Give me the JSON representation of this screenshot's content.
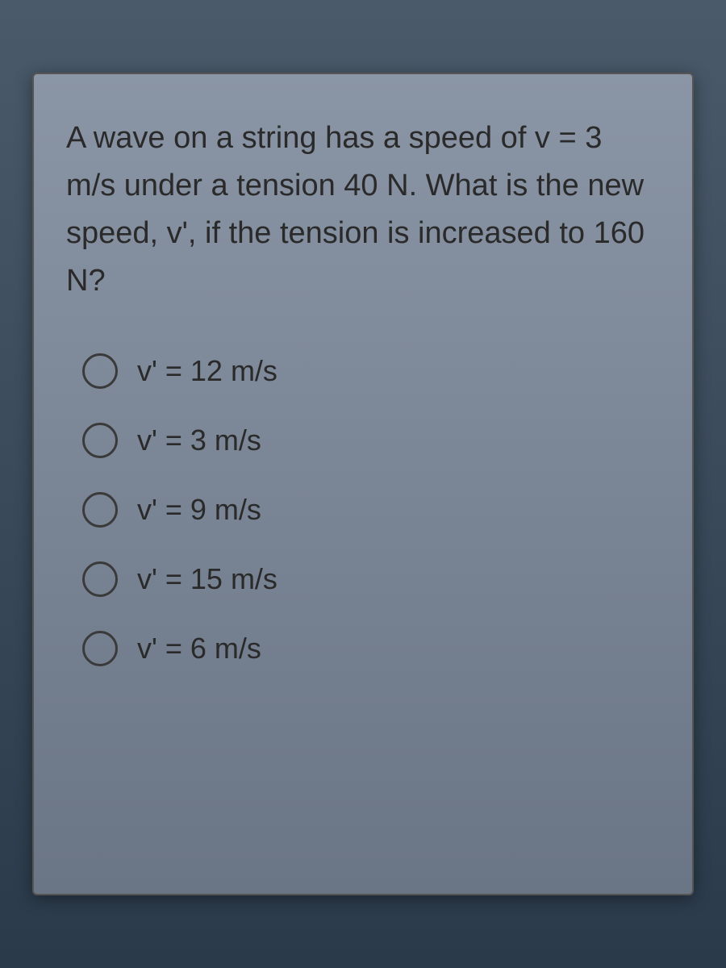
{
  "quiz": {
    "question_text": "A wave on a string has a speed of v = 3 m/s under a tension 40 N. What is the new speed, v', if the tension is increased to 160 N?",
    "options": [
      {
        "label": "v' = 12 m/s"
      },
      {
        "label": "v' = 3 m/s"
      },
      {
        "label": "v' = 9 m/s"
      },
      {
        "label": "v' = 15 m/s"
      },
      {
        "label": "v' = 6 m/s"
      }
    ],
    "styling": {
      "container_bg_gradient_start": "#8a95a5",
      "container_bg_gradient_end": "#6a7585",
      "page_bg_gradient_start": "#4a5a6a",
      "page_bg_gradient_end": "#2a3a4a",
      "text_color": "#2a2a2a",
      "radio_border_color": "#3a3a3a",
      "question_fontsize": 38,
      "option_fontsize": 36,
      "radio_size": 44
    }
  }
}
